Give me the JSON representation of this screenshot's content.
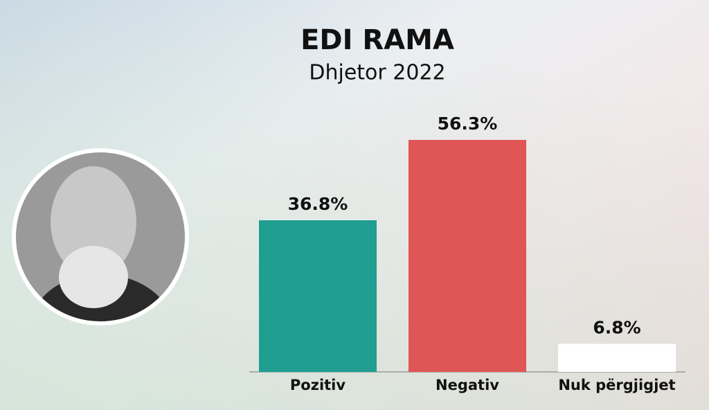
{
  "chart_data": {
    "type": "bar",
    "title": "EDI RAMA",
    "subtitle": "Dhjetor 2022",
    "categories": [
      "Pozitiv",
      "Negativ",
      "Nuk përgjigjet"
    ],
    "values": [
      36.8,
      56.3,
      6.8
    ],
    "value_labels": [
      "36.8%",
      "56.3%",
      "6.8%"
    ],
    "colors": [
      "#1f9e91",
      "#e05555",
      "#ffffff"
    ]
  }
}
